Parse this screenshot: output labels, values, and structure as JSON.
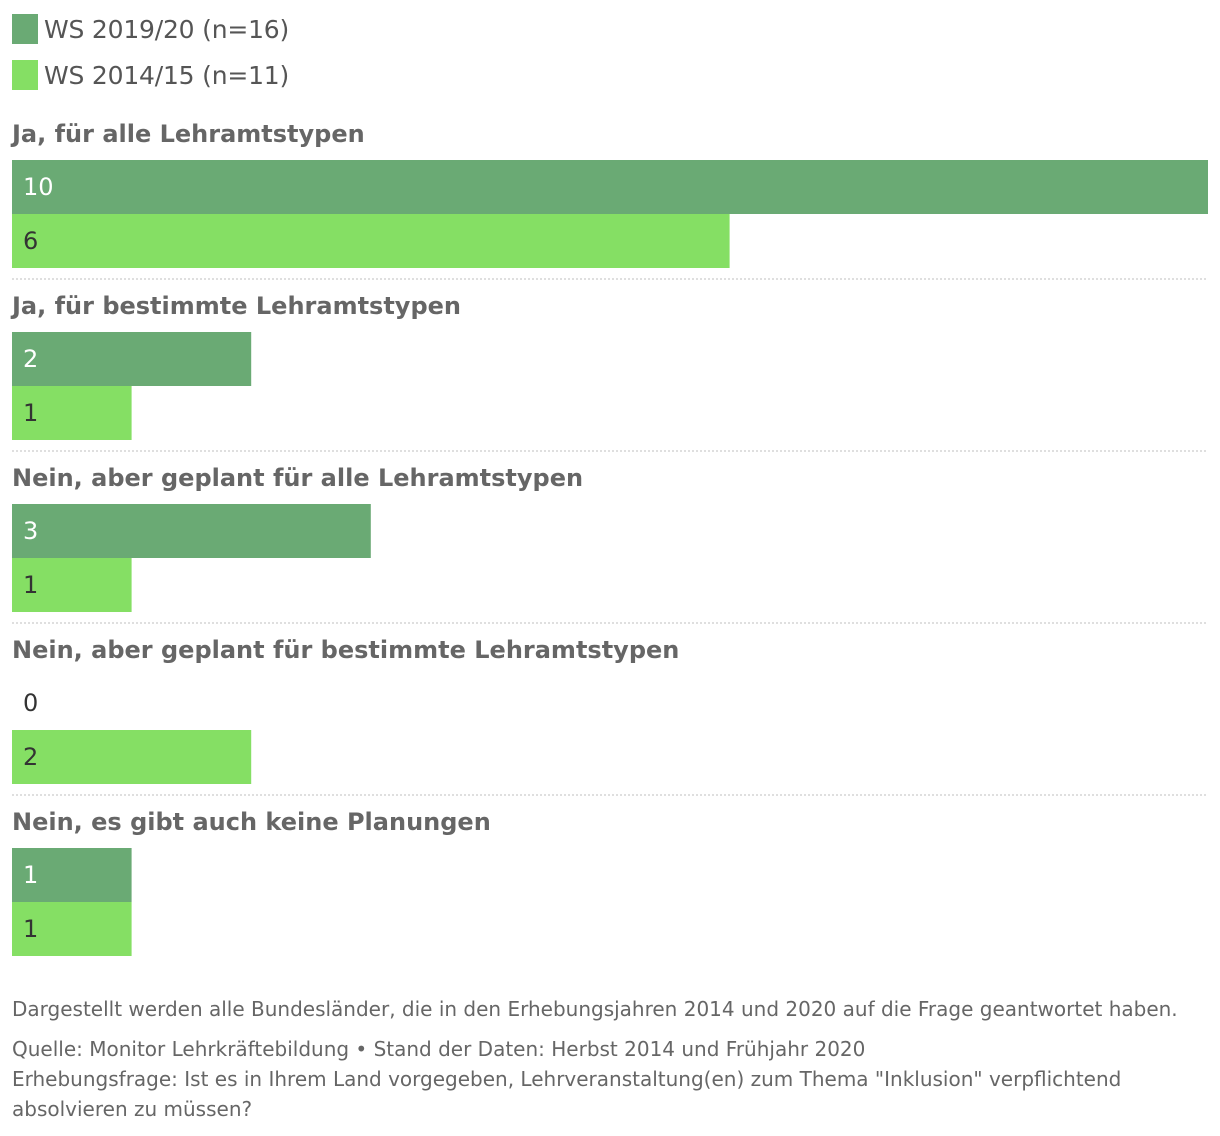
{
  "legend": [
    {
      "label": "WS 2019/20 (n=16)",
      "color": "#6aaa74"
    },
    {
      "label": "WS 2014/15 (n=11)",
      "color": "#85df64"
    }
  ],
  "chart_data": {
    "type": "bar",
    "orientation": "horizontal",
    "categories": [
      "Ja, für alle Lehramtstypen",
      "Ja, für bestimmte Lehramtstypen",
      "Nein, aber geplant für alle Lehramtstypen",
      "Nein, aber geplant für bestimmte Lehramtstypen",
      "Nein, es gibt auch keine Planungen"
    ],
    "series": [
      {
        "name": "WS 2019/20 (n=16)",
        "color": "#6aaa74",
        "values": [
          10,
          2,
          3,
          0,
          1
        ]
      },
      {
        "name": "WS 2014/15 (n=11)",
        "color": "#85df64",
        "values": [
          6,
          1,
          1,
          2,
          1
        ]
      }
    ],
    "xlim": [
      0,
      10
    ],
    "grid": false,
    "legend_position": "top-left"
  },
  "notes": {
    "description": "Dargestellt werden alle Bundesländer, die in den Erhebungsjahren 2014 und 2020 auf die Frage geantwortet haben.",
    "source": "Quelle: Monitor Lehrkräftebildung • Stand der Daten: Herbst 2014 und Frühjahr 2020",
    "question": "Erhebungsfrage: Ist es in Ihrem Land vorgegeben, Lehrveranstaltung(en) zum Thema \"Inklusion\" verpflichtend absolvieren zu müssen?"
  }
}
